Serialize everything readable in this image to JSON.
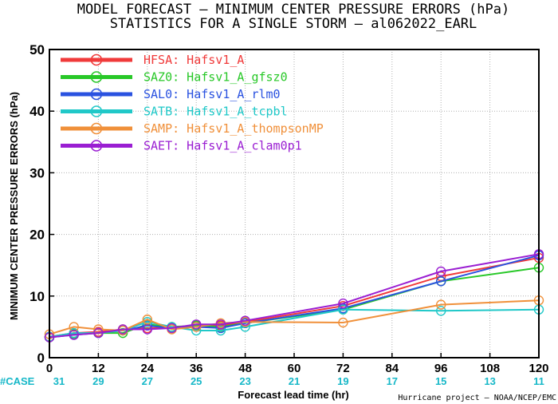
{
  "chart_data": {
    "type": "line",
    "title": "MODEL FORECAST – MINIMUM CENTER PRESSURE ERRORS (hPa)",
    "subtitle": "STATISTICS FOR A SINGLE STORM – al062022_EARL",
    "xlabel": "Forecast lead time (hr)",
    "ylabel": "MINIMUM CENTER PRESSURE ERRORS (hPa)",
    "xlim": [
      0,
      120
    ],
    "ylim": [
      0,
      50
    ],
    "x_ticks": [
      "0",
      "12",
      "24",
      "36",
      "48",
      "60",
      "72",
      "84",
      "96",
      "108",
      "120"
    ],
    "y_ticks": [
      "0",
      "10",
      "20",
      "30",
      "40",
      "50"
    ],
    "case_label": "#CASE",
    "case_counts": [
      "31",
      "29",
      "27",
      "25",
      "23",
      "21",
      "19",
      "17",
      "15",
      "13",
      "11"
    ],
    "credit": "Hurricane project – NOAA/NCEP/EMC",
    "legend_position": "top-left",
    "series": [
      {
        "name": "HFSA: Hafsv1_A",
        "color": "#f03a3a",
        "x": [
          0,
          6,
          12,
          18,
          24,
          30,
          36,
          42,
          48,
          72,
          96,
          120
        ],
        "y": [
          3.4,
          4.0,
          4.2,
          4.6,
          4.8,
          4.8,
          5.2,
          5.2,
          5.8,
          8.4,
          13.2,
          16.2
        ]
      },
      {
        "name": "SAZ0: Hafsv1_A_gfsz0",
        "color": "#28c828",
        "x": [
          0,
          6,
          12,
          18,
          24,
          30,
          36,
          42,
          48,
          72,
          96,
          120
        ],
        "y": [
          3.3,
          3.8,
          4.0,
          4.0,
          5.4,
          5.0,
          5.2,
          5.0,
          5.6,
          7.8,
          12.4,
          14.6
        ]
      },
      {
        "name": "SAL0: Hafsv1_A_rlm0",
        "color": "#2a52e0",
        "x": [
          0,
          6,
          12,
          18,
          24,
          30,
          36,
          42,
          48,
          72,
          96,
          120
        ],
        "y": [
          3.3,
          3.7,
          4.0,
          4.4,
          5.2,
          4.8,
          5.0,
          4.8,
          5.6,
          8.0,
          12.4,
          16.6
        ]
      },
      {
        "name": "SATB: Hafsv1_A_tcpbl",
        "color": "#20c8c8",
        "x": [
          0,
          6,
          12,
          18,
          24,
          30,
          36,
          42,
          48,
          72,
          96,
          120
        ],
        "y": [
          3.4,
          4.0,
          4.0,
          4.4,
          5.8,
          5.0,
          4.4,
          4.4,
          5.0,
          7.8,
          7.6,
          7.8
        ]
      },
      {
        "name": "SAMP: Hafsv1_A_thompsonMP",
        "color": "#f0903a",
        "x": [
          0,
          6,
          12,
          18,
          24,
          30,
          36,
          42,
          48,
          72,
          96,
          120
        ],
        "y": [
          3.8,
          5.0,
          4.6,
          4.4,
          6.2,
          4.6,
          5.0,
          5.6,
          5.8,
          5.7,
          8.6,
          9.3
        ]
      },
      {
        "name": "SAET: Hafsv1_A_clam0p1",
        "color": "#9a1ed2",
        "x": [
          0,
          6,
          12,
          18,
          24,
          30,
          36,
          42,
          48,
          72,
          96,
          120
        ],
        "y": [
          3.3,
          3.7,
          4.0,
          4.6,
          4.6,
          4.8,
          5.4,
          5.4,
          6.0,
          8.8,
          14.0,
          16.8
        ]
      }
    ]
  }
}
